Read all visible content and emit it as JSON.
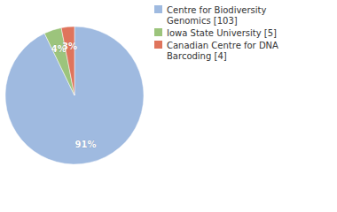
{
  "chart_data": {
    "type": "pie",
    "categories": [
      "Centre for Biodiversity Genomics [103]",
      "Iowa State University [5]",
      "Canadian Centre for DNA Barcoding [4]"
    ],
    "values": [
      91,
      4,
      3
    ],
    "colors": [
      "#9fbae0",
      "#9cc47c",
      "#df745c"
    ],
    "data_labels": true
  }
}
